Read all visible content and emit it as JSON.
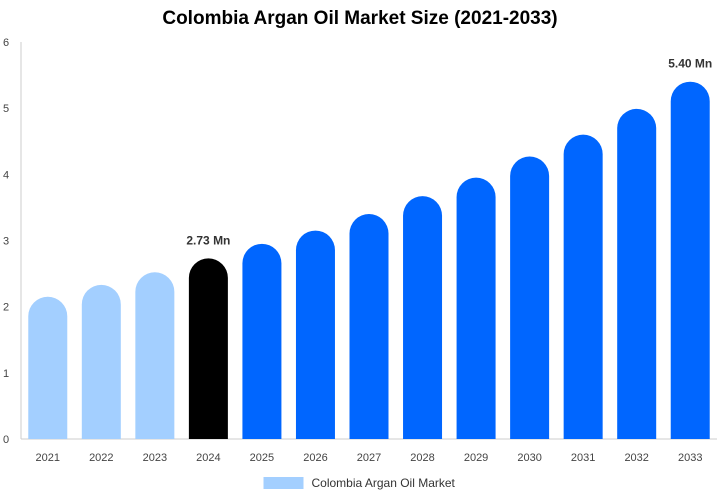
{
  "chart_data": {
    "type": "bar",
    "title": "Colombia Argan Oil Market Size (2021-2033)",
    "categories": [
      "2021",
      "2022",
      "2023",
      "2024",
      "2025",
      "2026",
      "2027",
      "2028",
      "2029",
      "2030",
      "2031",
      "2032",
      "2033"
    ],
    "series": [
      {
        "name": "Colombia Argan Oil Market",
        "values": [
          2.15,
          2.33,
          2.52,
          2.73,
          2.95,
          3.15,
          3.4,
          3.67,
          3.95,
          4.27,
          4.6,
          4.99,
          5.4
        ]
      }
    ],
    "data_labels": [
      {
        "category": "2024",
        "text": "2.73 Mn"
      },
      {
        "category": "2033",
        "text": "5.40 Mn"
      }
    ],
    "ylim": [
      0,
      6
    ],
    "yticks": [
      0,
      1,
      2,
      3,
      4,
      5,
      6
    ],
    "xlabel": "",
    "ylabel": "",
    "legend_position": "bottom",
    "colors": {
      "historical": "#a3cfff",
      "base_year": "#000000",
      "forecast": "#0066ff",
      "legend_swatch": "#a3cfff",
      "axis": "#cccccc"
    }
  }
}
